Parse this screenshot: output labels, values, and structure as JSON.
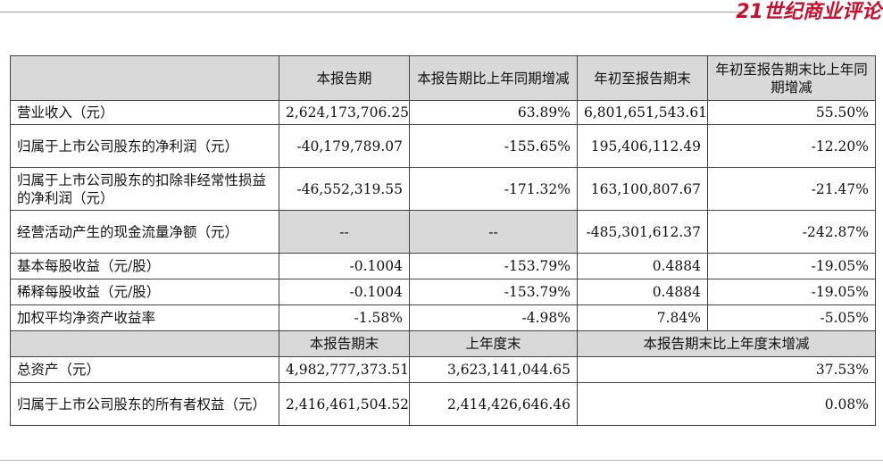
{
  "brand": {
    "text": "21世纪商业评论"
  },
  "table": {
    "header1": [
      "本报告期",
      "本报告期比上年同期增减",
      "年初至报告期末",
      "年初至报告期末比上年同期增减"
    ],
    "rows1": [
      {
        "label": "营业收入（元）",
        "v1": "2,624,173,706.25",
        "v2": "63.89%",
        "v3": "6,801,651,543.61",
        "v4": "55.50%"
      },
      {
        "label": "归属于上市公司股东的净利润（元）",
        "v1": "-40,179,789.07",
        "v2": "-155.65%",
        "v3": "195,406,112.49",
        "v4": "-12.20%"
      },
      {
        "label": "归属于上市公司股东的扣除非经常性损益的净利润（元）",
        "v1": "-46,552,319.55",
        "v2": "-171.32%",
        "v3": "163,100,807.67",
        "v4": "-21.47%"
      },
      {
        "label": "经营活动产生的现金流量净额（元）",
        "v1": "--",
        "v2": "--",
        "v3": "-485,301,612.37",
        "v4": "-242.87%"
      },
      {
        "label": "基本每股收益（元/股）",
        "v1": "-0.1004",
        "v2": "-153.79%",
        "v3": "0.4884",
        "v4": "-19.05%"
      },
      {
        "label": "稀释每股收益（元/股）",
        "v1": "-0.1004",
        "v2": "-153.79%",
        "v3": "0.4884",
        "v4": "-19.05%"
      },
      {
        "label": "加权平均净资产收益率",
        "v1": "-1.58%",
        "v2": "-4.98%",
        "v3": "7.84%",
        "v4": "-5.05%"
      }
    ],
    "header2": [
      "本报告期末",
      "上年度末",
      "本报告期末比上年度末增减"
    ],
    "rows2": [
      {
        "label": "总资产（元）",
        "v1": "4,982,777,373.51",
        "v2": "3,623,141,044.65",
        "v3": "37.53%"
      },
      {
        "label": "归属于上市公司股东的所有者权益（元）",
        "v1": "2,416,461,504.52",
        "v2": "2,414,426,646.46",
        "v3": "0.08%"
      }
    ]
  }
}
